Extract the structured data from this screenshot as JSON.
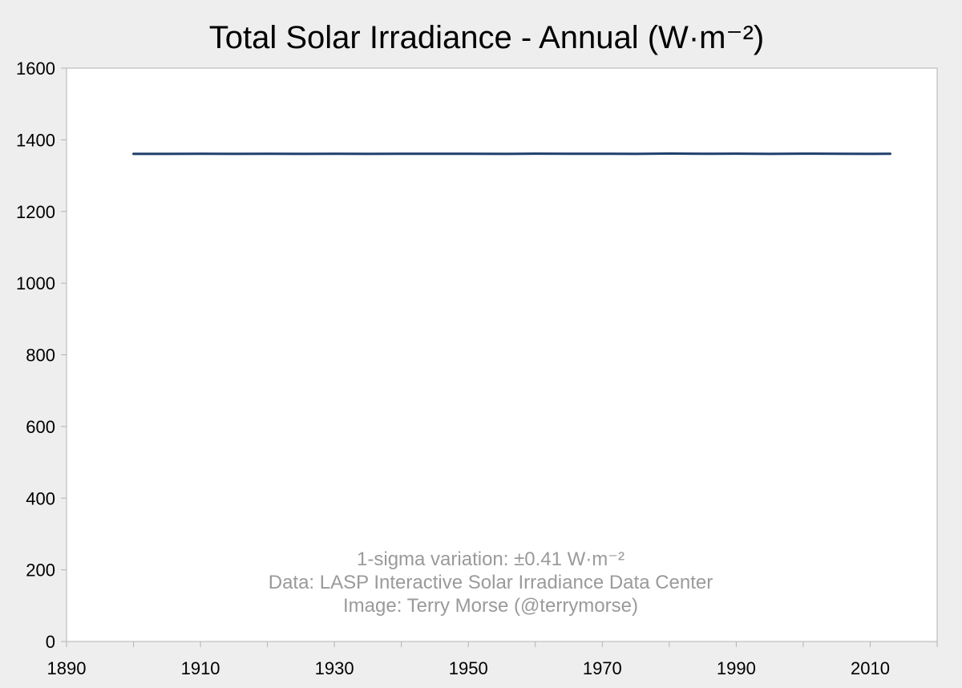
{
  "chart_data": {
    "type": "line",
    "title": "Total Solar Irradiance - Annual (W·m⁻²)",
    "xlabel": "",
    "ylabel": "",
    "xlim": [
      1890,
      2020
    ],
    "ylim": [
      0,
      1600
    ],
    "x_ticks": [
      "1890",
      "1910",
      "1930",
      "1950",
      "1970",
      "1990",
      "2010"
    ],
    "y_ticks": [
      "0",
      "200",
      "400",
      "600",
      "800",
      "1000",
      "1200",
      "1400",
      "1600"
    ],
    "grid": false,
    "legend": "none",
    "series": [
      {
        "color": "#1f3f6b",
        "x": [
          1900,
          1905,
          1910,
          1915,
          1920,
          1925,
          1930,
          1935,
          1940,
          1945,
          1950,
          1955,
          1960,
          1965,
          1970,
          1975,
          1980,
          1985,
          1990,
          1995,
          2000,
          2005,
          2010,
          2013
        ],
        "y": [
          1360.7,
          1360.8,
          1360.9,
          1360.7,
          1361.2,
          1360.8,
          1361.0,
          1360.8,
          1361.2,
          1360.9,
          1361.3,
          1360.8,
          1361.5,
          1361.0,
          1361.3,
          1360.8,
          1361.6,
          1360.9,
          1361.5,
          1360.8,
          1361.4,
          1360.9,
          1360.7,
          1361.0
        ]
      }
    ],
    "annotations": [
      "1-sigma variation: ±0.41 W·m⁻²",
      "Data: LASP Interactive Solar Irradiance Data Center",
      "Image: Terry Morse (@terrymorse)"
    ]
  }
}
